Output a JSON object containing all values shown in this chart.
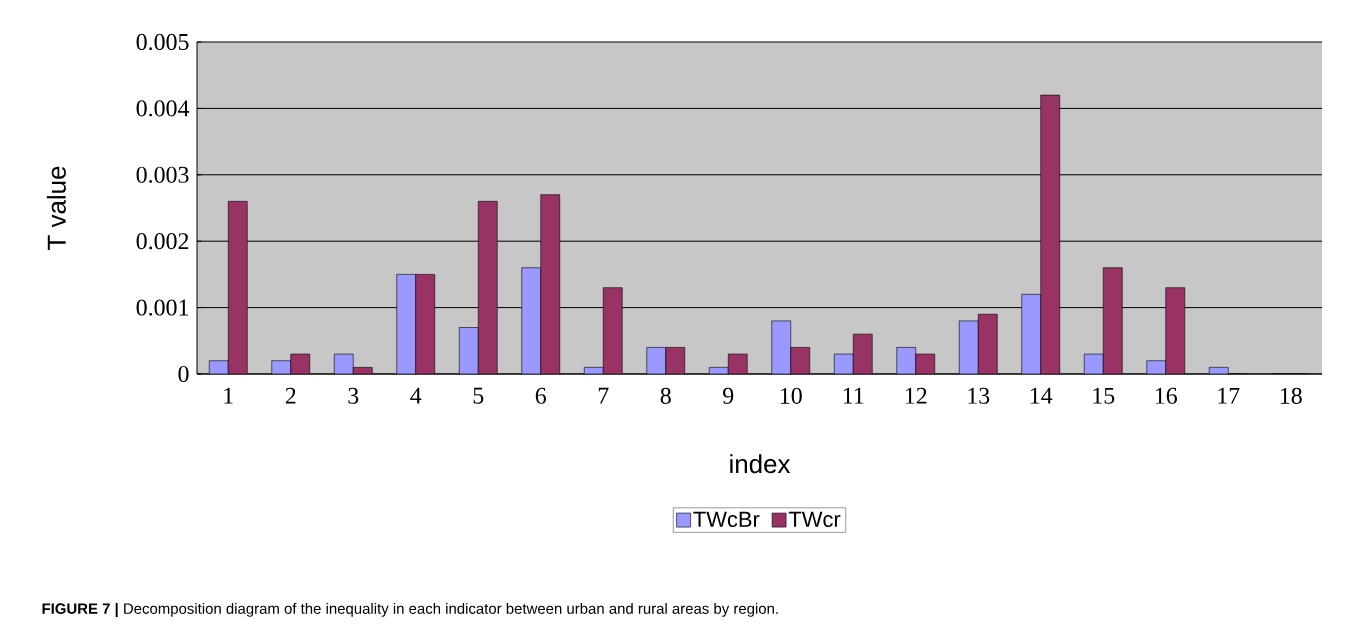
{
  "chart_data": {
    "type": "bar",
    "xlabel": "index",
    "ylabel": "T value",
    "categories": [
      "1",
      "2",
      "3",
      "4",
      "5",
      "6",
      "7",
      "8",
      "9",
      "10",
      "11",
      "12",
      "13",
      "14",
      "15",
      "16",
      "17",
      "18"
    ],
    "series": [
      {
        "name": "TWcBr",
        "color": "#9999ff",
        "values": [
          0.0002,
          0.0002,
          0.0003,
          0.0015,
          0.0007,
          0.0016,
          0.0001,
          0.0004,
          0.0001,
          0.0008,
          0.0003,
          0.0004,
          0.0008,
          0.0012,
          0.0003,
          0.0002,
          0.0001,
          0
        ]
      },
      {
        "name": "TWcr",
        "color": "#993366",
        "values": [
          0.0026,
          0.0003,
          0.0001,
          0.0015,
          0.0026,
          0.0027,
          0.0013,
          0.0004,
          0.0003,
          0.0004,
          0.0006,
          0.0003,
          0.0009,
          0.0042,
          0.0016,
          0.0013,
          0,
          0
        ]
      }
    ],
    "ylim": [
      0,
      0.005
    ],
    "yticks": [
      0,
      0.001,
      0.002,
      0.003,
      0.004,
      0.005
    ],
    "grid": "y",
    "legend": "bottom",
    "annotations": [
      "**FIGURE 7 |** Decomposition diagram of the inequality in each indicator between urban and rural areas by region."
    ]
  }
}
